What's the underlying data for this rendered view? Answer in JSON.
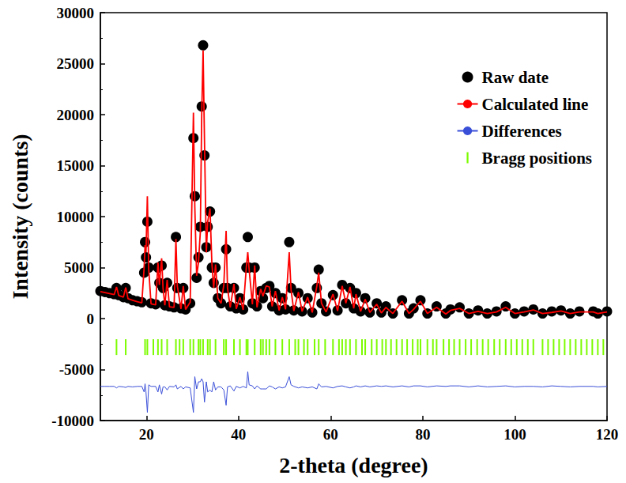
{
  "chart_data": {
    "type": "scatter",
    "xlabel": "2-theta (degree)",
    "ylabel": "Intensity (counts)",
    "xlim": [
      10,
      120
    ],
    "xticks": [
      20,
      40,
      60,
      80,
      100,
      120
    ],
    "ylim": [
      -10000,
      30000
    ],
    "yticks": [
      -10000,
      -5000,
      0,
      5000,
      10000,
      15000,
      20000,
      25000,
      30000
    ],
    "grid": false,
    "legend": "top-right",
    "series": [
      {
        "name": "Raw date",
        "type": "scatter",
        "color": "#000000",
        "marker": "circle",
        "x": [
          10,
          11,
          12,
          13,
          13.5,
          14,
          15,
          15.5,
          16,
          17,
          18,
          19,
          19.5,
          19.7,
          19.9,
          20.2,
          20.5,
          21,
          22,
          22.5,
          22.8,
          23.3,
          23.6,
          24,
          24.5,
          25,
          26,
          26.4,
          26.7,
          27.5,
          28,
          28.5,
          29.5,
          30.2,
          30.5,
          30.9,
          31.3,
          31.7,
          32.0,
          32.3,
          32.6,
          33.0,
          33.3,
          33.8,
          34.2,
          34.6,
          35.0,
          35.5,
          36.2,
          36.8,
          37.3,
          37.6,
          38.2,
          39.0,
          39.5,
          40.3,
          41.0,
          41.7,
          42.0,
          42.3,
          43.0,
          43.5,
          44.0,
          44.8,
          45.3,
          46.0,
          46.7,
          47.3,
          48.0,
          48.8,
          49.5,
          50.2,
          51.0,
          51.4,
          52.0,
          53.0,
          53.8,
          55.0,
          56,
          57.0,
          57.4,
          58,
          59,
          60.5,
          61.5,
          62.5,
          63.3,
          64.2,
          65,
          65.5,
          66.5,
          67.5,
          68.5,
          70,
          71,
          72,
          73.5,
          75.5,
          77,
          78,
          79.5,
          81,
          83,
          85,
          86,
          88,
          90,
          92,
          94,
          96,
          98,
          100,
          102,
          104,
          106,
          108,
          110,
          112,
          114,
          117,
          118,
          120
        ],
        "values": [
          2700,
          2600,
          2500,
          2400,
          3000,
          2300,
          2100,
          3000,
          2000,
          1800,
          1700,
          1600,
          4500,
          7500,
          6000,
          9500,
          5000,
          1500,
          1400,
          5000,
          3500,
          5200,
          3000,
          1300,
          3500,
          1200,
          1100,
          8000,
          3000,
          1000,
          3000,
          900,
          1500,
          17700,
          12000,
          4000,
          6000,
          9000,
          20800,
          26800,
          16000,
          7000,
          9000,
          10500,
          5000,
          3500,
          5000,
          2000,
          1500,
          3000,
          6800,
          3000,
          1200,
          3000,
          1000,
          2000,
          900,
          5000,
          8000,
          5000,
          1500,
          5000,
          1200,
          2700,
          2000,
          3000,
          3200,
          1200,
          2500,
          800,
          2000,
          900,
          7500,
          3000,
          800,
          2500,
          700,
          2000,
          600,
          3000,
          4800,
          1500,
          700,
          2300,
          800,
          3300,
          1500,
          3000,
          1000,
          2500,
          700,
          2000,
          600,
          1500,
          600,
          1200,
          500,
          1800,
          500,
          1000,
          1800,
          500,
          1200,
          500,
          900,
          1100,
          500,
          800,
          500,
          700,
          1200,
          500,
          700,
          900,
          500,
          700,
          800,
          500,
          700,
          700,
          500,
          700
        ]
      },
      {
        "name": "Calculated line",
        "type": "line",
        "color": "#ff0000",
        "line_style": "solid",
        "x": [
          10,
          11,
          12,
          13,
          13.5,
          14,
          15,
          15.5,
          16,
          17,
          18,
          19,
          19.5,
          19.7,
          19.9,
          20.2,
          20.5,
          21,
          22,
          22.5,
          22.8,
          23.3,
          23.6,
          24,
          24.5,
          25,
          26,
          26.4,
          26.7,
          27.5,
          28,
          28.5,
          29.5,
          30.2,
          30.5,
          30.9,
          31.3,
          31.7,
          32.0,
          32.3,
          32.6,
          33.0,
          33.3,
          33.8,
          34.2,
          34.6,
          35.0,
          35.5,
          36.2,
          36.8,
          37.3,
          37.6,
          38.2,
          39.0,
          39.5,
          40.3,
          41.0,
          41.7,
          42.0,
          42.3,
          43.0,
          43.5,
          44.0,
          44.8,
          45.3,
          46.0,
          46.7,
          47.3,
          48.0,
          48.8,
          49.5,
          50.2,
          51.0,
          51.4,
          52.0,
          53.0,
          53.8,
          55.0,
          56,
          57.0,
          57.4,
          58,
          59,
          60.5,
          61.5,
          62.5,
          63.3,
          64.2,
          65,
          65.5,
          66.5,
          67.5,
          68.5,
          70,
          71,
          72,
          73.5,
          75.5,
          77,
          78,
          79.5,
          81,
          83,
          85,
          86,
          88,
          90,
          92,
          94,
          96,
          98,
          100,
          102,
          104,
          106,
          108,
          110,
          112,
          114,
          117,
          118,
          120
        ],
        "values": [
          2650,
          2550,
          2450,
          2350,
          3100,
          2250,
          2100,
          3050,
          1950,
          1800,
          1650,
          1550,
          5000,
          7200,
          6500,
          12000,
          4800,
          1450,
          1350,
          5500,
          3300,
          5900,
          3000,
          1300,
          3800,
          1150,
          1100,
          7800,
          3200,
          950,
          3200,
          900,
          1600,
          20200,
          11000,
          4200,
          5500,
          8500,
          20000,
          26300,
          17500,
          6500,
          9500,
          10800,
          5500,
          3000,
          5300,
          2000,
          1500,
          3300,
          8600,
          3000,
          1100,
          3400,
          950,
          2100,
          850,
          5100,
          6500,
          4800,
          1400,
          5200,
          1100,
          2900,
          2200,
          3200,
          3100,
          1200,
          2700,
          800,
          2100,
          900,
          6500,
          2800,
          750,
          2600,
          700,
          2100,
          600,
          3200,
          4500,
          1500,
          650,
          2400,
          750,
          3200,
          1500,
          3100,
          1000,
          2400,
          700,
          1900,
          600,
          1400,
          550,
          1100,
          500,
          1700,
          500,
          900,
          1700,
          500,
          1100,
          450,
          800,
          1000,
          500,
          700,
          500,
          650,
          1100,
          500,
          650,
          850,
          500,
          600,
          750,
          500,
          650,
          650,
          500,
          650
        ]
      },
      {
        "name": "Differences",
        "type": "line",
        "color": "#3a4fd8",
        "line_style": "solid",
        "x": [
          10,
          11,
          12,
          13,
          13.5,
          14,
          15,
          15.5,
          16,
          17,
          18,
          19,
          19.5,
          19.7,
          19.9,
          20.2,
          20.5,
          21,
          22,
          22.5,
          22.8,
          23.3,
          23.6,
          24,
          24.5,
          25,
          26,
          26.4,
          26.7,
          27.5,
          28,
          28.5,
          29.5,
          30.2,
          30.5,
          30.9,
          31.3,
          31.7,
          32.0,
          32.3,
          32.6,
          33.0,
          33.3,
          33.8,
          34.2,
          34.6,
          35.0,
          35.5,
          36.2,
          36.8,
          37.3,
          37.6,
          38.2,
          39.0,
          39.5,
          40.3,
          41.0,
          41.7,
          42.0,
          42.3,
          43.0,
          43.5,
          44.0,
          44.8,
          45.3,
          46.0,
          46.7,
          47.3,
          48.0,
          48.8,
          49.5,
          50.2,
          51.0,
          51.4,
          52.0,
          53.0,
          53.8,
          55.0,
          56,
          57.0,
          57.4,
          58,
          59,
          60.5,
          61.5,
          62.5,
          63.3,
          64.2,
          65,
          65.5,
          66.5,
          67.5,
          68.5,
          70,
          71,
          72,
          73.5,
          75.5,
          77,
          78,
          79.5,
          81,
          83,
          85,
          86,
          88,
          90,
          92,
          94,
          96,
          98,
          100,
          102,
          104,
          106,
          108,
          110,
          112,
          114,
          117,
          118,
          120
        ],
        "values": [
          -6650,
          -6650,
          -6650,
          -6650,
          -6800,
          -6650,
          -6700,
          -6750,
          -6650,
          -6700,
          -6650,
          -6650,
          -7200,
          -6400,
          -7200,
          -9200,
          -6500,
          -6650,
          -6650,
          -7200,
          -6500,
          -7400,
          -6700,
          -6700,
          -7000,
          -6650,
          -6700,
          -6500,
          -6900,
          -6650,
          -6900,
          -6700,
          -6800,
          -9200,
          -5700,
          -6900,
          -6200,
          -6200,
          -5900,
          -6200,
          -8200,
          -6200,
          -7200,
          -7000,
          -7200,
          -6200,
          -7000,
          -6700,
          -6700,
          -7000,
          -8500,
          -6700,
          -6600,
          -7100,
          -6650,
          -6800,
          -6650,
          -6800,
          -5200,
          -6500,
          -6600,
          -6900,
          -6600,
          -6900,
          -6900,
          -6900,
          -6600,
          -6700,
          -6900,
          -6700,
          -6800,
          -6700,
          -5700,
          -6500,
          -6650,
          -6800,
          -6700,
          -6800,
          -6700,
          -6900,
          -6400,
          -6700,
          -6650,
          -6800,
          -6650,
          -6600,
          -6700,
          -6800,
          -6700,
          -6600,
          -6700,
          -6600,
          -6700,
          -6600,
          -6650,
          -6600,
          -6700,
          -6600,
          -6700,
          -6600,
          -6600,
          -6700,
          -6600,
          -6650,
          -6600,
          -6600,
          -6700,
          -6600,
          -6700,
          -6650,
          -6600,
          -6700,
          -6650,
          -6650,
          -6700,
          -6600,
          -6650,
          -6700,
          -6650,
          -6650,
          -6700,
          -6650
        ]
      },
      {
        "name": "Bragg positions",
        "type": "scatter",
        "color": "#7cfc00",
        "marker": "|",
        "x": [
          13.5,
          15.5,
          19.7,
          20.2,
          21.5,
          22.5,
          23.3,
          24.5,
          26.4,
          27.2,
          28,
          29.5,
          30.2,
          31.3,
          31.7,
          32.3,
          33.3,
          33.8,
          35,
          36.8,
          37.3,
          39,
          40.3,
          41.7,
          42,
          43.5,
          44.8,
          45.3,
          46,
          46.7,
          48,
          49.5,
          51,
          52.3,
          53,
          54.2,
          55,
          56.5,
          57.4,
          58.8,
          60.5,
          61.8,
          62.5,
          63.3,
          64.2,
          65.5,
          66.8,
          67.5,
          68.9,
          70,
          71.2,
          72,
          73.1,
          74.3,
          75.5,
          76.6,
          77.8,
          78.9,
          79.5,
          81,
          82.2,
          83,
          84.5,
          85.7,
          86.8,
          88,
          89.3,
          90.5,
          91.8,
          93,
          94.2,
          95.5,
          96.7,
          98,
          99.2,
          100.4,
          101.6,
          102.8,
          104,
          106,
          107.2,
          108.4,
          109.6,
          110.8,
          112,
          113.2,
          114.4,
          115.6,
          116.8,
          118,
          119.2
        ],
        "values": [
          -2800,
          -2800,
          -2800,
          -2800,
          -2800,
          -2800,
          -2800,
          -2800,
          -2800,
          -2800,
          -2800,
          -2800,
          -2800,
          -2800,
          -2800,
          -2800,
          -2800,
          -2800,
          -2800,
          -2800,
          -2800,
          -2800,
          -2800,
          -2800,
          -2800,
          -2800,
          -2800,
          -2800,
          -2800,
          -2800,
          -2800,
          -2800,
          -2800,
          -2800,
          -2800,
          -2800,
          -2800,
          -2800,
          -2800,
          -2800,
          -2800,
          -2800,
          -2800,
          -2800,
          -2800,
          -2800,
          -2800,
          -2800,
          -2800,
          -2800,
          -2800,
          -2800,
          -2800,
          -2800,
          -2800,
          -2800,
          -2800,
          -2800,
          -2800,
          -2800,
          -2800,
          -2800,
          -2800,
          -2800,
          -2800,
          -2800,
          -2800,
          -2800,
          -2800,
          -2800,
          -2800,
          -2800,
          -2800,
          -2800,
          -2800,
          -2800,
          -2800,
          -2800,
          -2800,
          -2800,
          -2800,
          -2800,
          -2800,
          -2800,
          -2800,
          -2800,
          -2800,
          -2800,
          -2800,
          -2800,
          -2800
        ]
      }
    ]
  }
}
